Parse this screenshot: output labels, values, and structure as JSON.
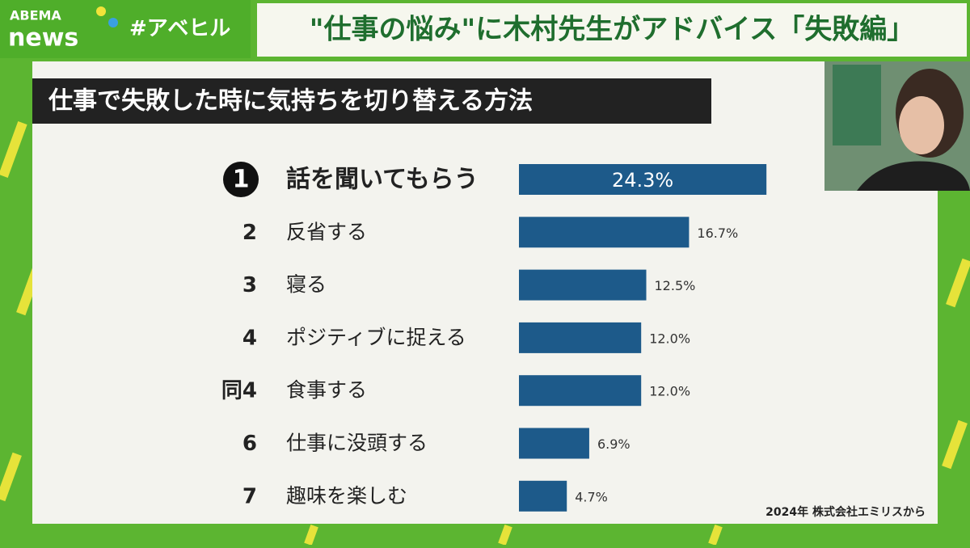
{
  "header": {
    "logo_top": "ABEMA",
    "logo_bottom": "news",
    "hashtag": "#アベヒル",
    "headline": "\"仕事の悩み\"に木村先生がアドバイス「失敗編」"
  },
  "chart_data": {
    "type": "bar",
    "orientation": "horizontal",
    "title": "仕事で失敗した時に気持ちを切り替える方法",
    "ranks": [
      "1",
      "2",
      "3",
      "4",
      "同4",
      "6",
      "7"
    ],
    "categories": [
      "話を聞いてもらう",
      "反省する",
      "寝る",
      "ポジティブに捉える",
      "食事する",
      "仕事に没頭する",
      "趣味を楽しむ"
    ],
    "values": [
      24.3,
      16.7,
      12.5,
      12.0,
      12.0,
      6.9,
      4.7
    ],
    "value_labels": [
      "24.3%",
      "16.7%",
      "12.5%",
      "12.0%",
      "12.0%",
      "6.9%",
      "4.7%"
    ],
    "color": "#1d5a8a",
    "source": "2024年 株式会社エミリスから"
  }
}
